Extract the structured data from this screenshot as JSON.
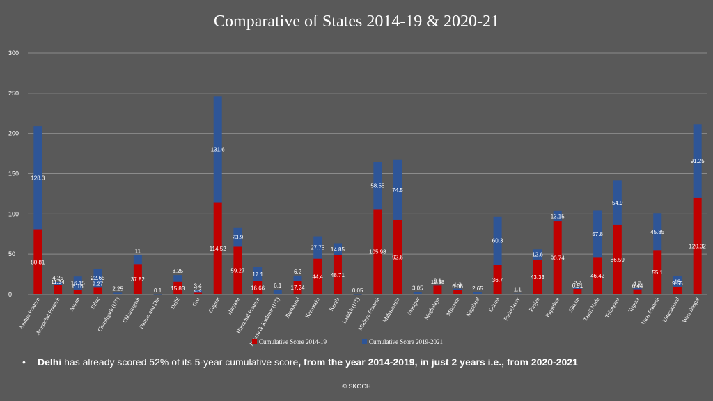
{
  "chart_data": {
    "type": "bar",
    "stacked": true,
    "title": "Comparative of States 2014-19 & 2020-21",
    "ylim": [
      0,
      300
    ],
    "yticks": [
      "0",
      "50",
      "100",
      "150",
      "200",
      "250",
      "300"
    ],
    "grid": true,
    "legend_position": "bottom",
    "categories": [
      "Andhra Pradesh",
      "Arunachal Pradesh",
      "Assam",
      "Bihar",
      "Chandigarh (UT)",
      "Chhattisgarh",
      "Daman and Diu",
      "Delhi",
      "Goa",
      "Gujarat",
      "Haryana",
      "Himachal Pradesh",
      "Jammu & Kashmir (UT)",
      "Jharkhand",
      "Karnataka",
      "Kerala",
      "Ladakh (UT)",
      "Madhya Pradesh",
      "Maharashtra",
      "Manipur",
      "Meghalaya",
      "Mizoram",
      "Nagaland",
      "Odisha",
      "Puducherry",
      "Punjab",
      "Rajasthan",
      "Sikkim",
      "Tamil Nadu",
      "Telangana",
      "Tripura",
      "Uttar Pradesh",
      "Uttarakhand",
      "West Bengal"
    ],
    "series": [
      {
        "name": "Cumulative Score 2014-19",
        "color": "#C00000",
        "values": [
          80.81,
          11.34,
          6.16,
          9.27,
          null,
          37.82,
          null,
          15.83,
          2.3,
          114.52,
          59.27,
          16.66,
          null,
          17.24,
          44.4,
          48.71,
          null,
          105.98,
          92.6,
          null,
          11.38,
          6.06,
          null,
          36.7,
          null,
          43.33,
          90.74,
          6.91,
          46.42,
          86.59,
          6.44,
          55.1,
          9.65,
          120.32
        ]
      },
      {
        "name": "Cumulative Score 2019-2021",
        "color": "#2E5597",
        "values": [
          128.3,
          4.25,
          16.15,
          22.65,
          2.25,
          11,
          0.1,
          8.25,
          3.4,
          131.6,
          23.9,
          17.1,
          6.1,
          6.2,
          27.75,
          14.85,
          0.05,
          58.55,
          74.5,
          3.05,
          0.1,
          1.2,
          2.65,
          60.3,
          1.1,
          12.6,
          13.15,
          2.2,
          57.8,
          54.9,
          1.7,
          45.85,
          13,
          91.25
        ]
      }
    ],
    "colors": {
      "background": "#595959",
      "grid": "#8c8c8c",
      "text": "#ffffff"
    }
  },
  "note": {
    "bullet": "•",
    "part1": "Delhi",
    "part2": " has already scored 52% of its 5-year cumulative score",
    "part3": ", from the year 2014-2019,  in just 2 years i.e., from 2020-2021"
  },
  "footer": "© SKOCH"
}
